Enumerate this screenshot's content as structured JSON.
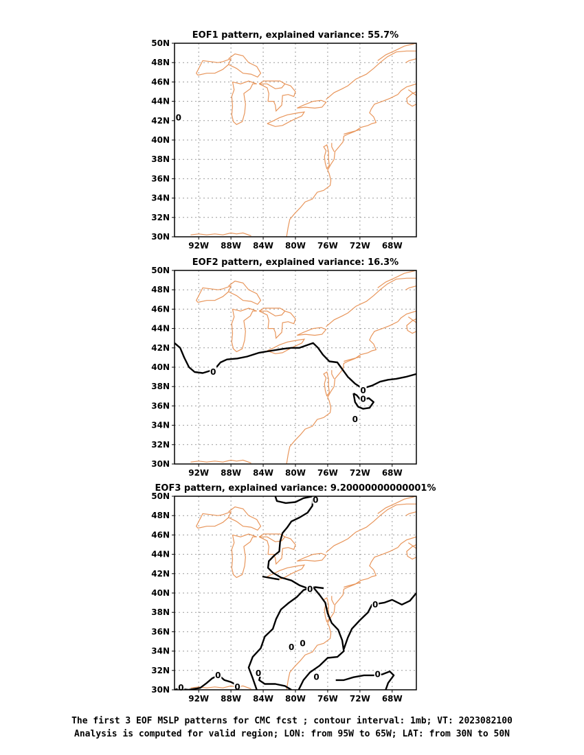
{
  "chart_data": [
    {
      "type": "contour-map",
      "title": "EOF1 pattern, explained variance: 55.7%",
      "lon_range": [
        -95,
        -65
      ],
      "lat_range": [
        30,
        50
      ],
      "xticks": [
        "92W",
        "88W",
        "84W",
        "80W",
        "76W",
        "72W",
        "68W"
      ],
      "yticks": [
        "30N",
        "32N",
        "34N",
        "36N",
        "38N",
        "40N",
        "42N",
        "44N",
        "46N",
        "48N",
        "50N"
      ],
      "grid": true,
      "contour_labels": [
        {
          "text": "0",
          "lon": -94.5,
          "lat": 42.3
        }
      ],
      "contours": []
    },
    {
      "type": "contour-map",
      "title": "EOF2 pattern, explained variance: 16.3%",
      "lon_range": [
        -95,
        -65
      ],
      "lat_range": [
        30,
        50
      ],
      "xticks": [
        "92W",
        "88W",
        "84W",
        "80W",
        "76W",
        "72W",
        "68W"
      ],
      "yticks": [
        "30N",
        "32N",
        "34N",
        "36N",
        "38N",
        "40N",
        "42N",
        "44N",
        "46N",
        "48N",
        "50N"
      ],
      "grid": true,
      "contour_labels": [
        {
          "text": "0",
          "lon": -90.2,
          "lat": 39.5
        },
        {
          "text": "0",
          "lon": -71.6,
          "lat": 37.6
        },
        {
          "text": "0",
          "lon": -71.6,
          "lat": 36.7
        },
        {
          "text": "0",
          "lon": -72.6,
          "lat": 34.6
        }
      ],
      "contours": [
        {
          "level": 0,
          "points": [
            [
              -95,
              42.5
            ],
            [
              -94.3,
              42.0
            ],
            [
              -93.8,
              41.0
            ],
            [
              -93.2,
              40.0
            ],
            [
              -92.5,
              39.5
            ],
            [
              -91.5,
              39.4
            ],
            [
              -90.7,
              39.6
            ],
            [
              -90.0,
              39.8
            ],
            [
              -89.3,
              40.5
            ],
            [
              -88.5,
              40.8
            ],
            [
              -87.2,
              40.9
            ],
            [
              -86.0,
              41.1
            ],
            [
              -84.5,
              41.5
            ],
            [
              -83.0,
              41.7
            ],
            [
              -81.5,
              41.9
            ],
            [
              -80.5,
              42.0
            ],
            [
              -79.5,
              42.0
            ],
            [
              -78.5,
              42.3
            ],
            [
              -77.8,
              42.5
            ],
            [
              -77.2,
              42.0
            ],
            [
              -76.6,
              41.3
            ],
            [
              -75.8,
              40.6
            ],
            [
              -74.8,
              40.5
            ],
            [
              -74.2,
              39.8
            ],
            [
              -73.5,
              39.0
            ],
            [
              -72.6,
              38.3
            ],
            [
              -71.7,
              37.8
            ],
            [
              -70.5,
              38.1
            ],
            [
              -69.5,
              38.5
            ],
            [
              -68.5,
              38.7
            ],
            [
              -67.5,
              38.8
            ],
            [
              -66.3,
              39.0
            ],
            [
              -65.0,
              39.3
            ]
          ]
        },
        {
          "level": 0,
          "points": [
            [
              -72.8,
              37.3
            ],
            [
              -72.4,
              37.1
            ],
            [
              -71.9,
              36.6
            ],
            [
              -70.9,
              36.8
            ],
            [
              -70.3,
              36.4
            ],
            [
              -70.8,
              35.8
            ],
            [
              -71.6,
              35.7
            ],
            [
              -72.2,
              35.9
            ],
            [
              -72.6,
              36.4
            ],
            [
              -72.8,
              37.3
            ]
          ]
        }
      ]
    },
    {
      "type": "contour-map",
      "title": "EOF3 pattern, explained variance: 9.20000000000001%",
      "lon_range": [
        -95,
        -65
      ],
      "lat_range": [
        30,
        50
      ],
      "xticks": [
        "92W",
        "88W",
        "84W",
        "80W",
        "76W",
        "72W",
        "68W"
      ],
      "yticks": [
        "30N",
        "32N",
        "34N",
        "36N",
        "38N",
        "40N",
        "42N",
        "44N",
        "46N",
        "48N",
        "50N"
      ],
      "grid": true,
      "contour_labels": [
        {
          "text": "0",
          "lon": -77.5,
          "lat": 49.6
        },
        {
          "text": "0",
          "lon": -78.2,
          "lat": 40.4
        },
        {
          "text": "0",
          "lon": -70.1,
          "lat": 38.8
        },
        {
          "text": "0",
          "lon": -80.5,
          "lat": 34.4
        },
        {
          "text": "0",
          "lon": -79.1,
          "lat": 34.8
        },
        {
          "text": "0",
          "lon": -89.6,
          "lat": 31.5
        },
        {
          "text": "0",
          "lon": -84.6,
          "lat": 31.7
        },
        {
          "text": "0",
          "lon": -69.8,
          "lat": 31.6
        },
        {
          "text": "0",
          "lon": -77.4,
          "lat": 31.3
        },
        {
          "text": "0",
          "lon": -94.2,
          "lat": 30.2
        },
        {
          "text": "0",
          "lon": -87.2,
          "lat": 30.3
        }
      ],
      "contours": [
        {
          "level": 0,
          "points": [
            [
              -82.5,
              50.0
            ],
            [
              -82.3,
              49.5
            ],
            [
              -81.2,
              49.3
            ],
            [
              -80.0,
              49.4
            ],
            [
              -79.0,
              49.8
            ],
            [
              -77.8,
              50.0
            ]
          ]
        },
        {
          "level": 0,
          "points": [
            [
              -77.8,
              50.0
            ],
            [
              -77.9,
              49.0
            ],
            [
              -78.5,
              48.3
            ],
            [
              -79.5,
              47.8
            ],
            [
              -80.5,
              47.4
            ],
            [
              -81.0,
              46.8
            ],
            [
              -81.6,
              46.2
            ],
            [
              -81.9,
              45.3
            ],
            [
              -82.0,
              44.3
            ],
            [
              -82.6,
              43.9
            ],
            [
              -83.3,
              43.3
            ],
            [
              -83.4,
              42.6
            ],
            [
              -82.8,
              42.1
            ],
            [
              -81.8,
              41.6
            ],
            [
              -80.5,
              41.3
            ],
            [
              -79.5,
              40.8
            ],
            [
              -78.5,
              40.5
            ],
            [
              -77.5,
              40.6
            ],
            [
              -76.5,
              40.5
            ]
          ]
        },
        {
          "level": 0,
          "points": [
            [
              -84.1,
              41.7
            ],
            [
              -82.0,
              41.4
            ]
          ]
        },
        {
          "level": 0,
          "points": [
            [
              -84.8,
              30.0
            ],
            [
              -85.3,
              31.2
            ],
            [
              -85.8,
              32.3
            ],
            [
              -85.3,
              33.4
            ],
            [
              -84.3,
              34.3
            ],
            [
              -83.8,
              35.5
            ],
            [
              -82.8,
              36.3
            ],
            [
              -82.4,
              37.3
            ],
            [
              -81.8,
              38.3
            ],
            [
              -80.8,
              39.0
            ],
            [
              -79.8,
              39.6
            ],
            [
              -79.0,
              40.3
            ],
            [
              -78.3,
              40.5
            ]
          ]
        },
        {
          "level": 0,
          "points": [
            [
              -77.8,
              40.6
            ],
            [
              -77.0,
              39.8
            ],
            [
              -76.3,
              39.0
            ],
            [
              -76.0,
              37.9
            ],
            [
              -75.5,
              36.9
            ],
            [
              -74.7,
              36.2
            ],
            [
              -74.2,
              35.1
            ],
            [
              -74.0,
              34.0
            ],
            [
              -74.8,
              33.4
            ],
            [
              -76.0,
              33.3
            ],
            [
              -77.0,
              32.5
            ],
            [
              -78.2,
              31.8
            ],
            [
              -79.0,
              31.0
            ],
            [
              -79.6,
              30.0
            ]
          ]
        },
        {
          "level": 0,
          "points": [
            [
              -65.0,
              40.0
            ],
            [
              -65.8,
              39.2
            ],
            [
              -66.8,
              38.8
            ],
            [
              -68.0,
              39.3
            ],
            [
              -69.0,
              39.0
            ],
            [
              -70.5,
              38.8
            ],
            [
              -71.0,
              38.0
            ],
            [
              -72.0,
              37.2
            ],
            [
              -73.0,
              36.3
            ],
            [
              -73.5,
              35.4
            ],
            [
              -74.0,
              34.2
            ]
          ]
        },
        {
          "level": 0,
          "points": [
            [
              -95.0,
              30.0
            ],
            [
              -94.5,
              30.1
            ],
            [
              -93.3,
              30.0
            ],
            [
              -92.5,
              30.1
            ],
            [
              -91.8,
              30.2
            ],
            [
              -91.0,
              30.7
            ],
            [
              -90.3,
              31.2
            ],
            [
              -89.5,
              31.5
            ],
            [
              -88.8,
              31.0
            ],
            [
              -88.0,
              30.8
            ],
            [
              -87.3,
              30.5
            ],
            [
              -86.8,
              30.1
            ]
          ]
        },
        {
          "level": 0,
          "points": [
            [
              -84.3,
              31.6
            ],
            [
              -84.5,
              31.0
            ],
            [
              -83.8,
              30.6
            ],
            [
              -82.5,
              30.6
            ],
            [
              -81.3,
              30.4
            ],
            [
              -80.5,
              30.0
            ]
          ]
        },
        {
          "level": 0,
          "points": [
            [
              -75.0,
              31.0
            ],
            [
              -74.0,
              31.0
            ],
            [
              -72.8,
              31.3
            ],
            [
              -71.5,
              31.5
            ],
            [
              -70.3,
              31.5
            ],
            [
              -69.2,
              31.6
            ],
            [
              -68.3,
              31.9
            ],
            [
              -67.8,
              31.5
            ],
            [
              -68.5,
              30.7
            ],
            [
              -68.8,
              30.0
            ]
          ]
        }
      ]
    }
  ],
  "footer": {
    "line1": "The first 3 EOF MSLP patterns for CMC fcst ; contour interval: 1mb; VT: 2023082100",
    "line2": "Analysis is computed for valid region; LON: from 95W to 65W; LAT: from 30N to 50N"
  },
  "colors": {
    "coastline": "#e8955a",
    "contour": "#000000",
    "grid": "#999999",
    "frame": "#000000"
  }
}
